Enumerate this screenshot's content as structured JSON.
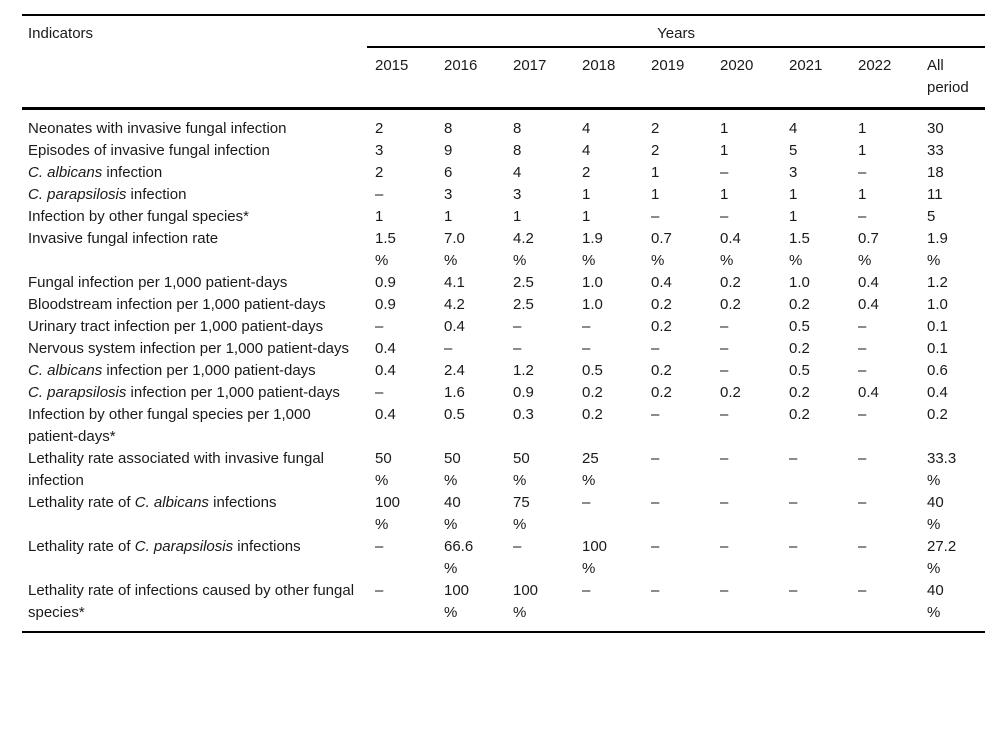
{
  "page": {
    "background_color": "#ffffff",
    "text_color": "#1a1a1a",
    "rule_color": "#000000"
  },
  "table": {
    "indicators_header": "Indicators",
    "years_header": "Years",
    "year_columns": [
      "2015",
      "2016",
      "2017",
      "2018",
      "2019",
      "2020",
      "2021",
      "2022"
    ],
    "all_period_header": "All\nperiod",
    "rows": [
      {
        "label": [
          {
            "text": "Neonates with invasive fungal infection"
          }
        ],
        "values": [
          "2",
          "8",
          "8",
          "4",
          "2",
          "1",
          "4",
          "1",
          "30"
        ]
      },
      {
        "label": [
          {
            "text": "Episodes of invasive fungal infection"
          }
        ],
        "values": [
          "3",
          "9",
          "8",
          "4",
          "2",
          "1",
          "5",
          "1",
          "33"
        ]
      },
      {
        "label": [
          {
            "text": "C. albicans",
            "italic": true
          },
          {
            "text": " infection"
          }
        ],
        "values": [
          "2",
          "6",
          "4",
          "2",
          "1",
          "–",
          "3",
          "–",
          "18"
        ]
      },
      {
        "label": [
          {
            "text": "C. parapsilosis",
            "italic": true
          },
          {
            "text": " infection"
          }
        ],
        "values": [
          "–",
          "3",
          "3",
          "1",
          "1",
          "1",
          "1",
          "1",
          "11"
        ]
      },
      {
        "label": [
          {
            "text": "Infection by other fungal species*"
          }
        ],
        "values": [
          "1",
          "1",
          "1",
          "1",
          "–",
          "–",
          "1",
          "–",
          "5"
        ]
      },
      {
        "label": [
          {
            "text": "Invasive fungal infection rate"
          }
        ],
        "values": [
          "1.5\n%",
          "7.0\n%",
          "4.2\n%",
          "1.9\n%",
          "0.7\n%",
          "0.4\n%",
          "1.5\n%",
          "0.7\n%",
          "1.9\n%"
        ]
      },
      {
        "label": [
          {
            "text": "Fungal infection per 1,000 patient-days"
          }
        ],
        "values": [
          "0.9",
          "4.1",
          "2.5",
          "1.0",
          "0.4",
          "0.2",
          "1.0",
          "0.4",
          "1.2"
        ]
      },
      {
        "label": [
          {
            "text": "Bloodstream infection per 1,000 patient-days"
          }
        ],
        "values": [
          "0.9",
          "4.2",
          "2.5",
          "1.0",
          "0.2",
          "0.2",
          "0.2",
          "0.4",
          "1.0"
        ]
      },
      {
        "label": [
          {
            "text": "Urinary tract infection per 1,000 patient-days"
          }
        ],
        "values": [
          "–",
          "0.4",
          "–",
          "–",
          "0.2",
          "–",
          "0.5",
          "–",
          "0.1"
        ]
      },
      {
        "label": [
          {
            "text": "Nervous system infection per 1,000 patient-days"
          }
        ],
        "values": [
          "0.4",
          "–",
          "–",
          "–",
          "–",
          "–",
          "0.2",
          "–",
          "0.1"
        ]
      },
      {
        "label": [
          {
            "text": "C. albicans",
            "italic": true
          },
          {
            "text": " infection per 1,000 patient-days"
          }
        ],
        "values": [
          "0.4",
          "2.4",
          "1.2",
          "0.5",
          "0.2",
          "–",
          "0.5",
          "–",
          "0.6"
        ]
      },
      {
        "label": [
          {
            "text": "C. parapsilosis",
            "italic": true
          },
          {
            "text": " infection per 1,000 patient-days"
          }
        ],
        "values": [
          "–",
          "1.6",
          "0.9",
          "0.2",
          "0.2",
          "0.2",
          "0.2",
          "0.4",
          "0.4"
        ]
      },
      {
        "label": [
          {
            "text": "Infection by other fungal species per 1,000 patient-days*"
          }
        ],
        "values": [
          "0.4",
          "0.5",
          "0.3",
          "0.2",
          "–",
          "–",
          "0.2",
          "–",
          "0.2"
        ]
      },
      {
        "label": [
          {
            "text": "Lethality rate associated with invasive fungal infection"
          }
        ],
        "values": [
          "50\n%",
          "50\n%",
          "50\n%",
          "25\n%",
          "–",
          "–",
          "–",
          "–",
          "33.3\n%"
        ]
      },
      {
        "label": [
          {
            "text": "Lethality rate of "
          },
          {
            "text": "C. albicans",
            "italic": true
          },
          {
            "text": " infections"
          }
        ],
        "values": [
          "100\n%",
          "40\n%",
          "75\n%",
          "–",
          "–",
          "–",
          "–",
          "–",
          "40\n%"
        ]
      },
      {
        "label": [
          {
            "text": "Lethality rate of "
          },
          {
            "text": "C. parapsilosis",
            "italic": true
          },
          {
            "text": " infections"
          }
        ],
        "values": [
          "–",
          "66.6\n%",
          "–",
          "100\n%",
          "–",
          "–",
          "–",
          "–",
          "27.2\n%"
        ]
      },
      {
        "label": [
          {
            "text": "Lethality rate of infections caused by other fungal species*"
          }
        ],
        "values": [
          "–",
          "100\n%",
          "100\n%",
          "–",
          "–",
          "–",
          "–",
          "–",
          "40\n%"
        ]
      }
    ]
  }
}
